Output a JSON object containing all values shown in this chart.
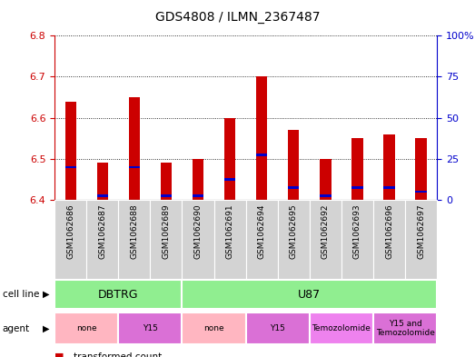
{
  "title": "GDS4808 / ILMN_2367487",
  "samples": [
    "GSM1062686",
    "GSM1062687",
    "GSM1062688",
    "GSM1062689",
    "GSM1062690",
    "GSM1062691",
    "GSM1062694",
    "GSM1062695",
    "GSM1062692",
    "GSM1062693",
    "GSM1062696",
    "GSM1062697"
  ],
  "red_values": [
    6.64,
    6.49,
    6.65,
    6.49,
    6.5,
    6.6,
    6.7,
    6.57,
    6.5,
    6.55,
    6.56,
    6.55
  ],
  "blue_values": [
    6.48,
    6.41,
    6.48,
    6.41,
    6.41,
    6.45,
    6.51,
    6.43,
    6.41,
    6.43,
    6.43,
    6.42
  ],
  "ylim_left": [
    6.4,
    6.8
  ],
  "ylim_right": [
    0,
    100
  ],
  "yticks_left": [
    6.4,
    6.5,
    6.6,
    6.7,
    6.8
  ],
  "yticks_right": [
    0,
    25,
    50,
    75,
    100
  ],
  "bar_color": "#cc0000",
  "blue_marker_color": "#0000cc",
  "bar_bottom": 6.4,
  "tick_label_color_left": "#cc0000",
  "tick_label_color_right": "#0000cc",
  "sample_bg_color": "#d3d3d3",
  "cell_line_color": "#90ee90",
  "agent_none_color": "#ffb6c1",
  "agent_y15_color": "#da70d6",
  "agent_temo_color": "#ee82ee",
  "cell_line_groups": [
    {
      "label": "DBTRG",
      "start": 0,
      "end": 3
    },
    {
      "label": "U87",
      "start": 4,
      "end": 11
    }
  ],
  "agent_groups": [
    {
      "label": "none",
      "start": 0,
      "end": 1,
      "agent_color_key": "agent_none_color"
    },
    {
      "label": "Y15",
      "start": 2,
      "end": 3,
      "agent_color_key": "agent_y15_color"
    },
    {
      "label": "none",
      "start": 4,
      "end": 5,
      "agent_color_key": "agent_none_color"
    },
    {
      "label": "Y15",
      "start": 6,
      "end": 7,
      "agent_color_key": "agent_y15_color"
    },
    {
      "label": "Temozolomide",
      "start": 8,
      "end": 9,
      "agent_color_key": "agent_temo_color"
    },
    {
      "label": "Y15 and\nTemozolomide",
      "start": 10,
      "end": 11,
      "agent_color_key": "agent_y15_color"
    }
  ]
}
